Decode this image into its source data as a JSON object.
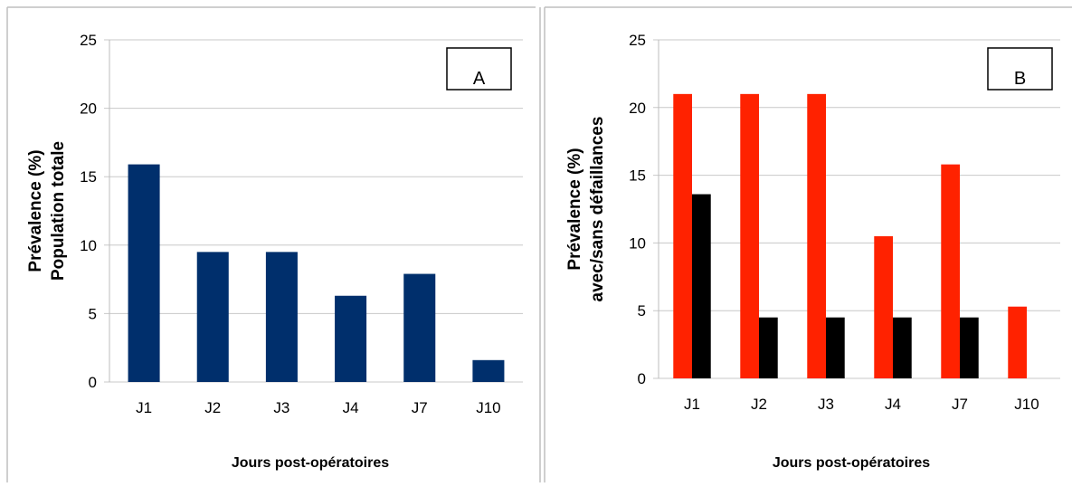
{
  "chart_data": [
    {
      "type": "bar",
      "panel_label": "A",
      "categories": [
        "J1",
        "J2",
        "J3",
        "J4",
        "J7",
        "J10"
      ],
      "series": [
        {
          "values": [
            15.9,
            9.5,
            9.5,
            6.3,
            7.9,
            1.6
          ],
          "color": "#002f6c"
        }
      ],
      "ylabel_lines": [
        "Prévalence (%)",
        "Population totale"
      ],
      "xlabel": "Jours post-opératoires",
      "ylim": [
        0,
        25
      ],
      "yticks": [
        0,
        5,
        10,
        15,
        20,
        25
      ],
      "grid": true
    },
    {
      "type": "bar",
      "panel_label": "B",
      "categories": [
        "J1",
        "J2",
        "J3",
        "J4",
        "J7",
        "J10"
      ],
      "series": [
        {
          "values": [
            21.0,
            21.0,
            21.0,
            10.5,
            15.8,
            5.3
          ],
          "color": "#ff2200"
        },
        {
          "values": [
            13.6,
            4.5,
            4.5,
            4.5,
            4.5,
            0
          ],
          "color": "#000000"
        }
      ],
      "ylabel_lines": [
        "Prévalence (%)",
        "avec/sans défaillances"
      ],
      "xlabel": "Jours post-opératoires",
      "ylim": [
        0,
        25
      ],
      "yticks": [
        0,
        5,
        10,
        15,
        20,
        25
      ],
      "grid": true
    }
  ]
}
